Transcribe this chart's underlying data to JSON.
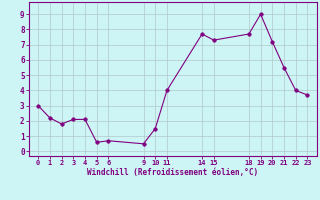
{
  "x": [
    0,
    1,
    2,
    3,
    4,
    5,
    6,
    9,
    10,
    11,
    14,
    15,
    18,
    19,
    20,
    21,
    22,
    23
  ],
  "y": [
    3.0,
    2.2,
    1.8,
    2.1,
    2.1,
    0.6,
    0.7,
    0.5,
    1.5,
    4.0,
    7.7,
    7.3,
    7.7,
    9.0,
    7.2,
    5.5,
    4.0,
    3.7
  ],
  "line_color": "#800080",
  "marker_color": "#800080",
  "bg_color": "#cef5f5",
  "grid_color": "#b0c8c8",
  "xlabel": "Windchill (Refroidissement éolien,°C)",
  "xlabel_color": "#800080",
  "xticks": [
    0,
    1,
    2,
    3,
    4,
    5,
    6,
    9,
    10,
    11,
    14,
    15,
    18,
    19,
    20,
    21,
    22,
    23
  ],
  "xtick_labels": [
    "0",
    "1",
    "2",
    "3",
    "4",
    "5",
    "6",
    "9",
    "10",
    "11",
    "14",
    "15",
    "18",
    "19",
    "20",
    "21",
    "22",
    "23"
  ],
  "yticks": [
    0,
    1,
    2,
    3,
    4,
    5,
    6,
    7,
    8,
    9
  ],
  "ylim": [
    -0.3,
    9.8
  ],
  "xlim": [
    -0.8,
    23.8
  ],
  "spine_color": "#800080",
  "tick_color": "#800080"
}
